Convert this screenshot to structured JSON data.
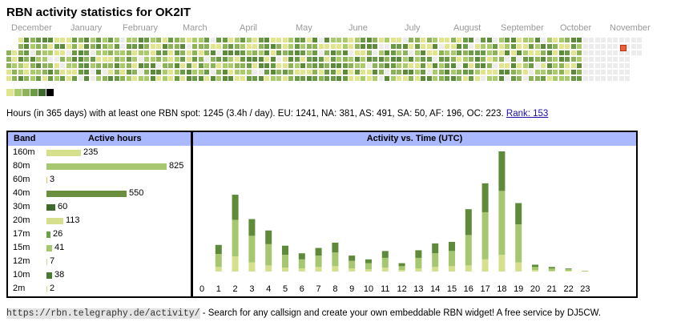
{
  "title": "RBN activity statistics for OK2IT",
  "months": [
    "December",
    "January",
    "February",
    "March",
    "April",
    "May",
    "June",
    "July",
    "August",
    "September",
    "October",
    "November"
  ],
  "legend_colors": [
    "#e0e58e",
    "#aacb6b",
    "#8db359",
    "#6a9a45",
    "#3d6a2a",
    "#000000"
  ],
  "summary": {
    "text": "Hours (in 365 days) with at least one RBN spot: 1245 (3.4h / day). EU: 1241, NA: 381, AS: 491, SA: 50, AF: 196, OC: 223.",
    "rank_label": "Rank: 153"
  },
  "band_table": {
    "header_band": "Band",
    "header_hours": "Active hours",
    "rows": [
      {
        "band": "160m",
        "hours": 235,
        "label": "235",
        "color": "#d6e08c"
      },
      {
        "band": "80m",
        "hours": 825,
        "label": "825",
        "color": "#a6c770"
      },
      {
        "band": "60m",
        "hours": 3,
        "label": "3",
        "color": "#e8c060"
      },
      {
        "band": "40m",
        "hours": 550,
        "label": "550",
        "color": "#6a8f3e"
      },
      {
        "band": "30m",
        "hours": 60,
        "label": "60",
        "color": "#3f6a2b"
      },
      {
        "band": "20m",
        "hours": 113,
        "label": "113",
        "color": "#d6e08c"
      },
      {
        "band": "17m",
        "hours": 26,
        "label": "26",
        "color": "#6aa04a"
      },
      {
        "band": "15m",
        "hours": 41,
        "label": "41",
        "color": "#a6c770"
      },
      {
        "band": "12m",
        "hours": 7,
        "label": "7",
        "color": "#c8d8a0"
      },
      {
        "band": "10m",
        "hours": 38,
        "label": "38",
        "color": "#4a7a30"
      },
      {
        "band": "2m",
        "hours": 2,
        "label": "2",
        "color": "#d6e08c"
      }
    ]
  },
  "activity": {
    "title": "Activity vs. Time (UTC)",
    "hour_labels": [
      "0",
      "1",
      "2",
      "3",
      "4",
      "5",
      "6",
      "7",
      "8",
      "9",
      "10",
      "11",
      "12",
      "13",
      "14",
      "15",
      "16",
      "17",
      "18",
      "19",
      "20",
      "21",
      "22",
      "23"
    ],
    "series_colors": [
      "#d6e08c",
      "#a6c770",
      "#5f8a3a"
    ],
    "hours": [
      [
        0,
        0,
        0
      ],
      [
        6,
        17,
        12
      ],
      [
        20,
        48,
        33
      ],
      [
        12,
        35,
        22
      ],
      [
        8,
        28,
        18
      ],
      [
        5,
        17,
        12
      ],
      [
        4,
        12,
        8
      ],
      [
        6,
        15,
        10
      ],
      [
        7,
        18,
        13
      ],
      [
        4,
        10,
        7
      ],
      [
        3,
        8,
        5
      ],
      [
        5,
        13,
        9
      ],
      [
        2,
        5,
        4
      ],
      [
        4,
        14,
        10
      ],
      [
        6,
        18,
        13
      ],
      [
        7,
        20,
        12
      ],
      [
        8,
        40,
        34
      ],
      [
        16,
        62,
        38
      ],
      [
        22,
        84,
        52
      ],
      [
        12,
        50,
        28
      ],
      [
        2,
        4,
        3
      ],
      [
        1,
        3,
        2
      ],
      [
        1,
        2,
        1
      ],
      [
        0,
        1,
        0
      ]
    ]
  },
  "footer": {
    "url": "https://rbn.telegraphy.de/activity/",
    "text": " - Search for any callsign and create your own embeddable RBN widget! A free service by DJ5CW."
  }
}
